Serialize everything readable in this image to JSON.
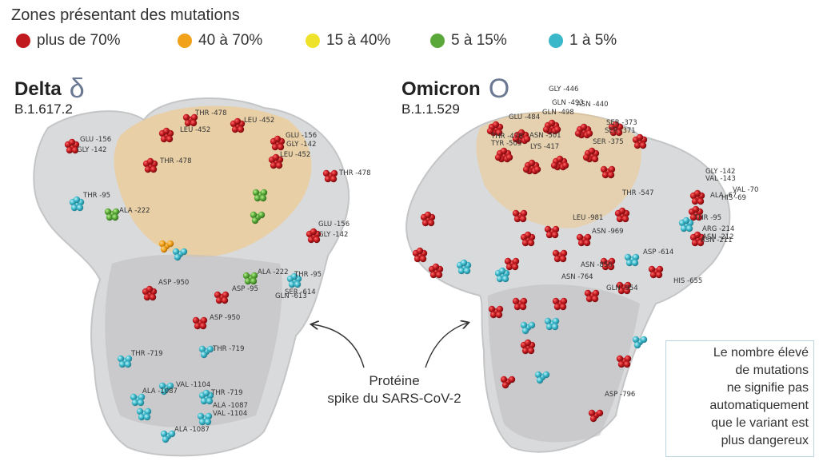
{
  "header": {
    "title": "Zones présentant des mutations"
  },
  "legend": [
    {
      "label": "plus de 70%",
      "color": "#c0191e"
    },
    {
      "label": "40 à 70%",
      "color": "#f2a21a"
    },
    {
      "label": "15 à 40%",
      "color": "#efe22a"
    },
    {
      "label": "5 à 15%",
      "color": "#5aa83a"
    },
    {
      "label": "1 à 5%",
      "color": "#3ab7c9"
    }
  ],
  "delta": {
    "name": "Delta",
    "symbol": "δ",
    "lineage": "B.1.617.2",
    "labels": [
      "THR -478",
      "LEU -452",
      "GLU -156",
      "GLY -142",
      "LEU -452",
      "GLU -156",
      "GLY -142",
      "LEU -452",
      "THR -478",
      "THR -478",
      "THR -95",
      "ALA -222",
      "GLU -156",
      "GLY -142",
      "ALA -222",
      "THR -95",
      "ASP -950",
      "ASP -95",
      "SER -614",
      "GLN -613",
      "ASP -950",
      "THR -719",
      "THR -719",
      "VAL -1104",
      "ALA -1087",
      "THR -719",
      "ALA -1087",
      "VAL -1104",
      "ALA -1087"
    ]
  },
  "omicron": {
    "name": "Omicron",
    "symbol": "O",
    "lineage": "B.1.1.529",
    "labels": [
      "GLY -446",
      "GLN -493",
      "ASN -440",
      "GLU -484",
      "GLN -498",
      "THR -478",
      "SER -373",
      "SER -371",
      "SER -375",
      "TYR -505",
      "ASN -501",
      "LYS -417",
      "THR -547",
      "GLY -142",
      "VAL -143",
      "ALA -67",
      "HIS -69",
      "VAL -70",
      "LEU -981",
      "ASN -969",
      "THR -95",
      "ARG -214",
      "ASN -212",
      "ASN -211",
      "ASP -614",
      "ASN -856",
      "ASN -764",
      "GLN -954",
      "HIS -655",
      "ASP -796"
    ]
  },
  "center_label": {
    "line1": "Protéine",
    "line2": "spike du SARS-CoV-2"
  },
  "note": {
    "lines": [
      "Le nombre élevé",
      "de mutations",
      "ne signifie pas",
      "automatiquement",
      "que le variant est",
      "plus dangereux"
    ]
  }
}
